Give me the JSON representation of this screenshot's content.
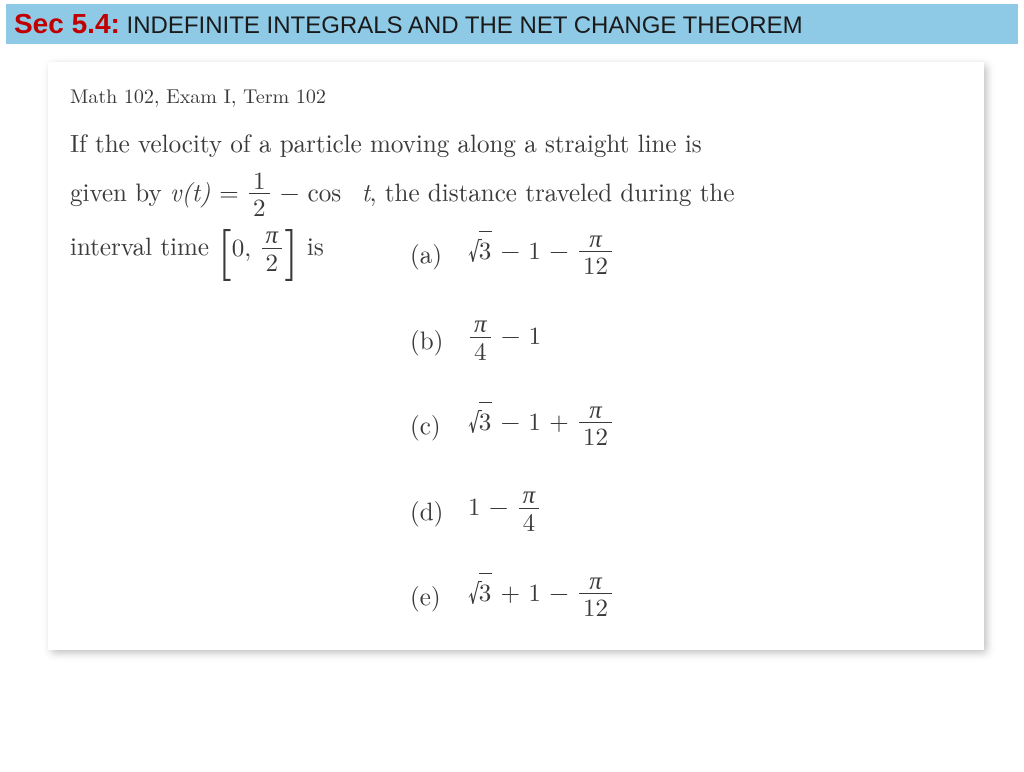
{
  "header": {
    "sec_label": "Sec 5.4:",
    "sec_title": " INDEFINITE INTEGRALS AND THE NET CHANGE THEOREM",
    "bar_color": "#8ecae6",
    "label_color": "#c00000"
  },
  "card": {
    "exam_line": "Math 102, Exam I, Term 102",
    "problem": {
      "line1_pre": "If the velocity of a particle moving along a straight line is",
      "line2_pre": "given by ",
      "vt": "v",
      "vt_arg": "t",
      "eq_rhs_frac_num": "1",
      "eq_rhs_frac_den": "2",
      "eq_rhs_tail": "cos",
      "eq_rhs_var": "t",
      "line2_post": ", the distance traveled during the",
      "line3_pre": "interval time ",
      "interval_lo": "0",
      "interval_hi_num": "π",
      "interval_hi_den": "2",
      "line3_post": " is"
    },
    "choices": [
      {
        "label": "(a)",
        "type": "sqrt_minus_one_pm_pi12",
        "sqrt_of": "3",
        "sign2": "−",
        "pi_num": "π",
        "pi_den": "12"
      },
      {
        "label": "(b)",
        "type": "pi4_minus_one",
        "pi_num": "π",
        "pi_den": "4"
      },
      {
        "label": "(c)",
        "type": "sqrt_minus_one_pm_pi12",
        "sqrt_of": "3",
        "sign2": "+",
        "pi_num": "π",
        "pi_den": "12"
      },
      {
        "label": "(d)",
        "type": "one_minus_pi4",
        "pi_num": "π",
        "pi_den": "4"
      },
      {
        "label": "(e)",
        "type": "sqrt_plus_one_minus_pi12",
        "sqrt_of": "3",
        "pi_num": "π",
        "pi_den": "12"
      }
    ]
  },
  "style": {
    "text_color": "#3a3a3a",
    "body_fontsize": 25,
    "exam_fontsize": 20
  }
}
